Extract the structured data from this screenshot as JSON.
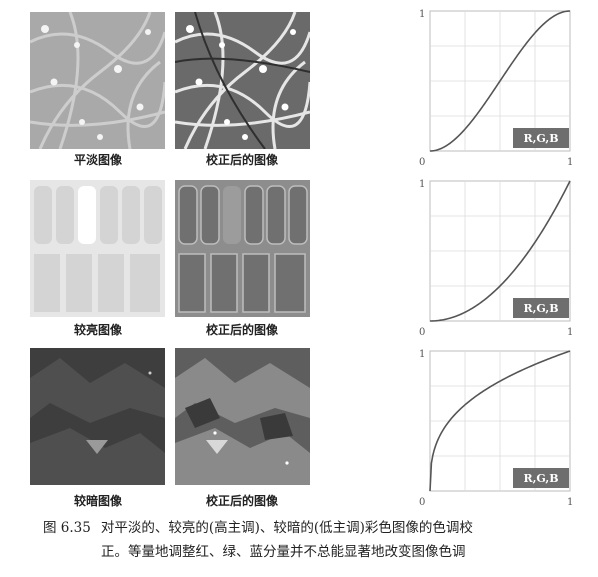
{
  "rows": [
    {
      "id": "flat",
      "original_caption": "平淡图像",
      "corrected_caption": "校正后的图像",
      "curve_label": "R,G,B",
      "axis": {
        "origin": "0",
        "x_max": "1",
        "y_max": "1"
      },
      "curve_type": "s-curve"
    },
    {
      "id": "light",
      "original_caption": "较亮图像",
      "corrected_caption": "校正后的图像",
      "curve_label": "R,G,B",
      "axis": {
        "origin": "0",
        "x_max": "1",
        "y_max": "1"
      },
      "curve_type": "power-curve-darken"
    },
    {
      "id": "dark",
      "original_caption": "较暗图像",
      "corrected_caption": "校正后的图像",
      "curve_label": "R,G,B",
      "axis": {
        "origin": "0",
        "x_max": "1",
        "y_max": "1"
      },
      "curve_type": "power-curve-brighten"
    }
  ],
  "figure_caption": {
    "number": "图 6.35",
    "line1": "对平淡的、较亮的(高主调)、较暗的(低主调)彩色图像的色调校",
    "line2": "正。等量地调整红、绿、蓝分量并不总能显著地改变图像色调"
  },
  "colors": {
    "curve": "#555555",
    "grid": "#d0d0d0",
    "badge": "#6e6e6e"
  }
}
